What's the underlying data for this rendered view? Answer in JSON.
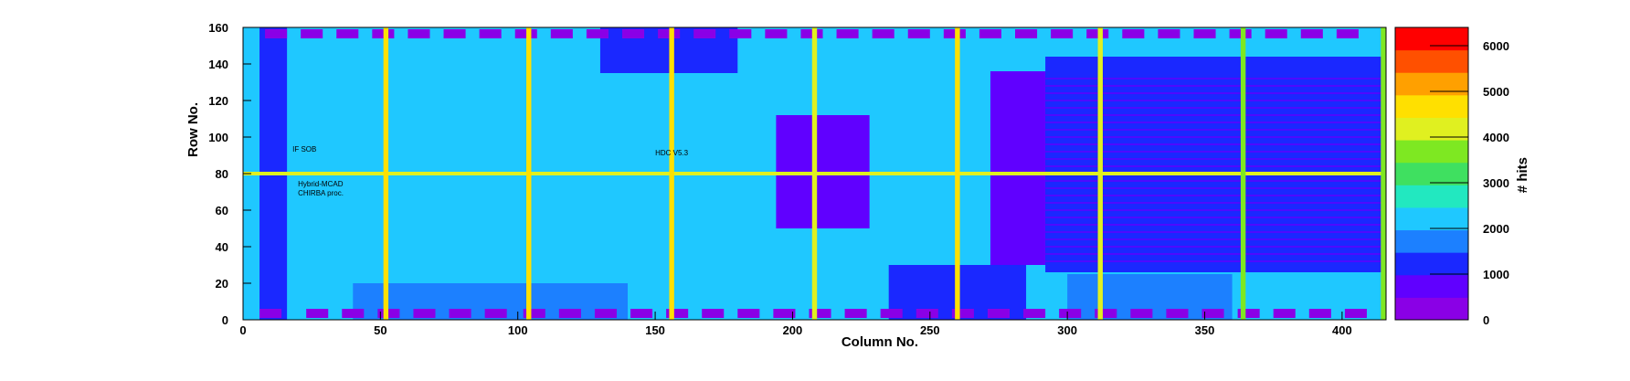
{
  "chart_data": {
    "type": "heatmap",
    "title": "",
    "xlabel": "Column No.",
    "ylabel": "Row No.",
    "zlabel": "# hits",
    "xlim": [
      0,
      416
    ],
    "ylim": [
      0,
      160
    ],
    "zlim": [
      0,
      6400
    ],
    "x_ticks": [
      0,
      50,
      100,
      150,
      200,
      250,
      300,
      350,
      400
    ],
    "y_ticks": [
      0,
      20,
      40,
      60,
      80,
      100,
      120,
      140,
      160
    ],
    "z_ticks": [
      0,
      1000,
      2000,
      3000,
      4000,
      5000,
      6000
    ],
    "colormap": [
      "#8a00e6",
      "#6000ff",
      "#1a28ff",
      "#1c80ff",
      "#1fc8ff",
      "#22e8c0",
      "#3fe060",
      "#7ee822",
      "#e0f020",
      "#ffe000",
      "#ffa000",
      "#ff5000",
      "#ff0000"
    ],
    "background_level": 2000,
    "hot_columns": [
      {
        "x": 52,
        "level": 4600
      },
      {
        "x": 104,
        "level": 4600
      },
      {
        "x": 156,
        "level": 4600
      },
      {
        "x": 208,
        "level": 4400
      },
      {
        "x": 260,
        "level": 4600
      },
      {
        "x": 312,
        "level": 4100
      },
      {
        "x": 364,
        "level": 3700
      },
      {
        "x": 415,
        "level": 3600
      }
    ],
    "hot_rows": [
      {
        "y": 80,
        "level": 4200
      }
    ],
    "low_regions": [
      {
        "x": [
          272,
          415
        ],
        "y": [
          30,
          136
        ],
        "level": 500
      },
      {
        "x": [
          292,
          415
        ],
        "y": [
          26,
          144
        ],
        "level": 1000
      },
      {
        "x": [
          194,
          228
        ],
        "y": [
          50,
          112
        ],
        "level": 800
      },
      {
        "x": [
          6,
          16
        ],
        "y": [
          0,
          160
        ],
        "level": 1200
      },
      {
        "x": [
          235,
          285
        ],
        "y": [
          0,
          30
        ],
        "level": 1300
      },
      {
        "x": [
          130,
          180
        ],
        "y": [
          135,
          160
        ],
        "level": 1300
      },
      {
        "x": [
          40,
          140
        ],
        "y": [
          0,
          20
        ],
        "level": 1500
      },
      {
        "x": [
          300,
          360
        ],
        "y": [
          0,
          25
        ],
        "level": 1500
      }
    ],
    "bottom_pads_x": [
      10,
      27,
      40,
      53,
      66,
      79,
      92,
      106,
      119,
      132,
      145,
      158,
      171,
      184,
      197,
      210,
      223,
      236,
      249,
      262,
      275,
      288,
      301,
      314,
      327,
      340,
      353,
      366,
      379,
      392,
      405
    ],
    "top_pads_x": [
      12,
      25,
      38,
      51,
      64,
      77,
      90,
      103,
      116,
      129,
      142,
      155,
      168,
      181,
      194,
      207,
      220,
      233,
      246,
      259,
      272,
      285,
      298,
      311,
      324,
      337,
      350,
      363,
      376,
      389,
      402
    ],
    "labels_on_map": [
      {
        "text": "HDC V5.3",
        "x": 150,
        "y": 90
      },
      {
        "text": "IF SOB",
        "x": 18,
        "y": 92
      },
      {
        "text": "Hybrid-MCAD",
        "x": 20,
        "y": 73
      },
      {
        "text": "CHIRBA proc.",
        "x": 20,
        "y": 68
      }
    ]
  }
}
